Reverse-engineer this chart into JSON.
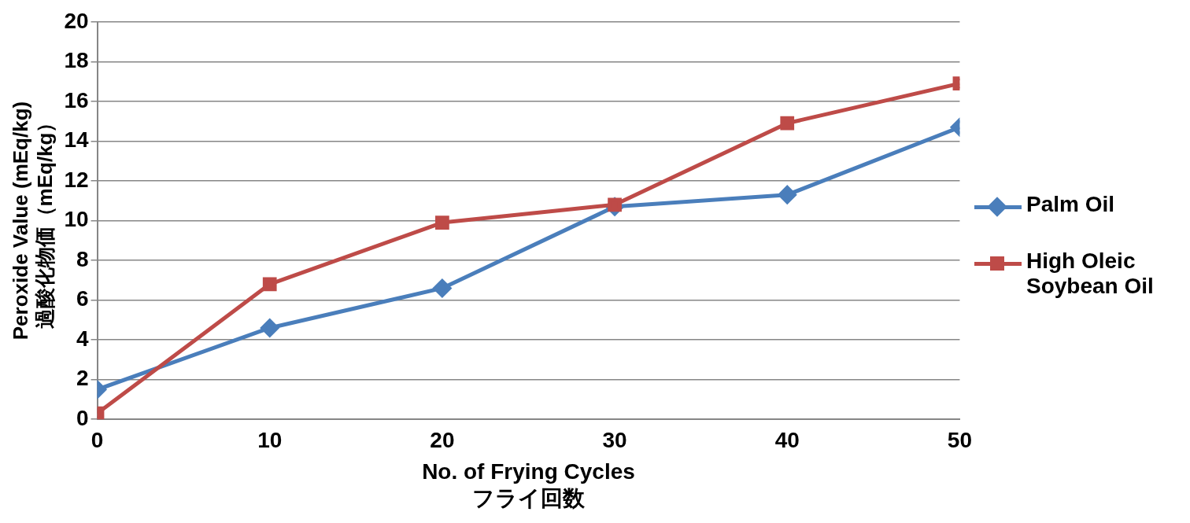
{
  "chart_data": {
    "type": "line",
    "xlabel": "No. of Frying Cycles\nフライ回数",
    "ylabel": "Peroxide Value (mEq/kg)\n過酸化物価（mEq/kg）",
    "x": [
      0,
      10,
      20,
      30,
      40,
      50
    ],
    "series": [
      {
        "name": "Palm Oil",
        "color": "#4a7ebb",
        "values": [
          1.5,
          4.6,
          6.6,
          10.7,
          11.3,
          14.7
        ],
        "marker": "diamond"
      },
      {
        "name": "High Oleic Soybean Oil",
        "color": "#be4b48",
        "values": [
          0.3,
          6.8,
          9.9,
          10.8,
          14.9,
          16.9
        ],
        "marker": "square"
      }
    ],
    "xlim": [
      0,
      50
    ],
    "xticks": [
      0,
      10,
      20,
      30,
      40,
      50
    ],
    "ylim": [
      0,
      20
    ],
    "yticks": [
      0,
      2,
      4,
      6,
      8,
      10,
      12,
      14,
      16,
      18,
      20
    ],
    "grid": "y",
    "legend": "right"
  }
}
